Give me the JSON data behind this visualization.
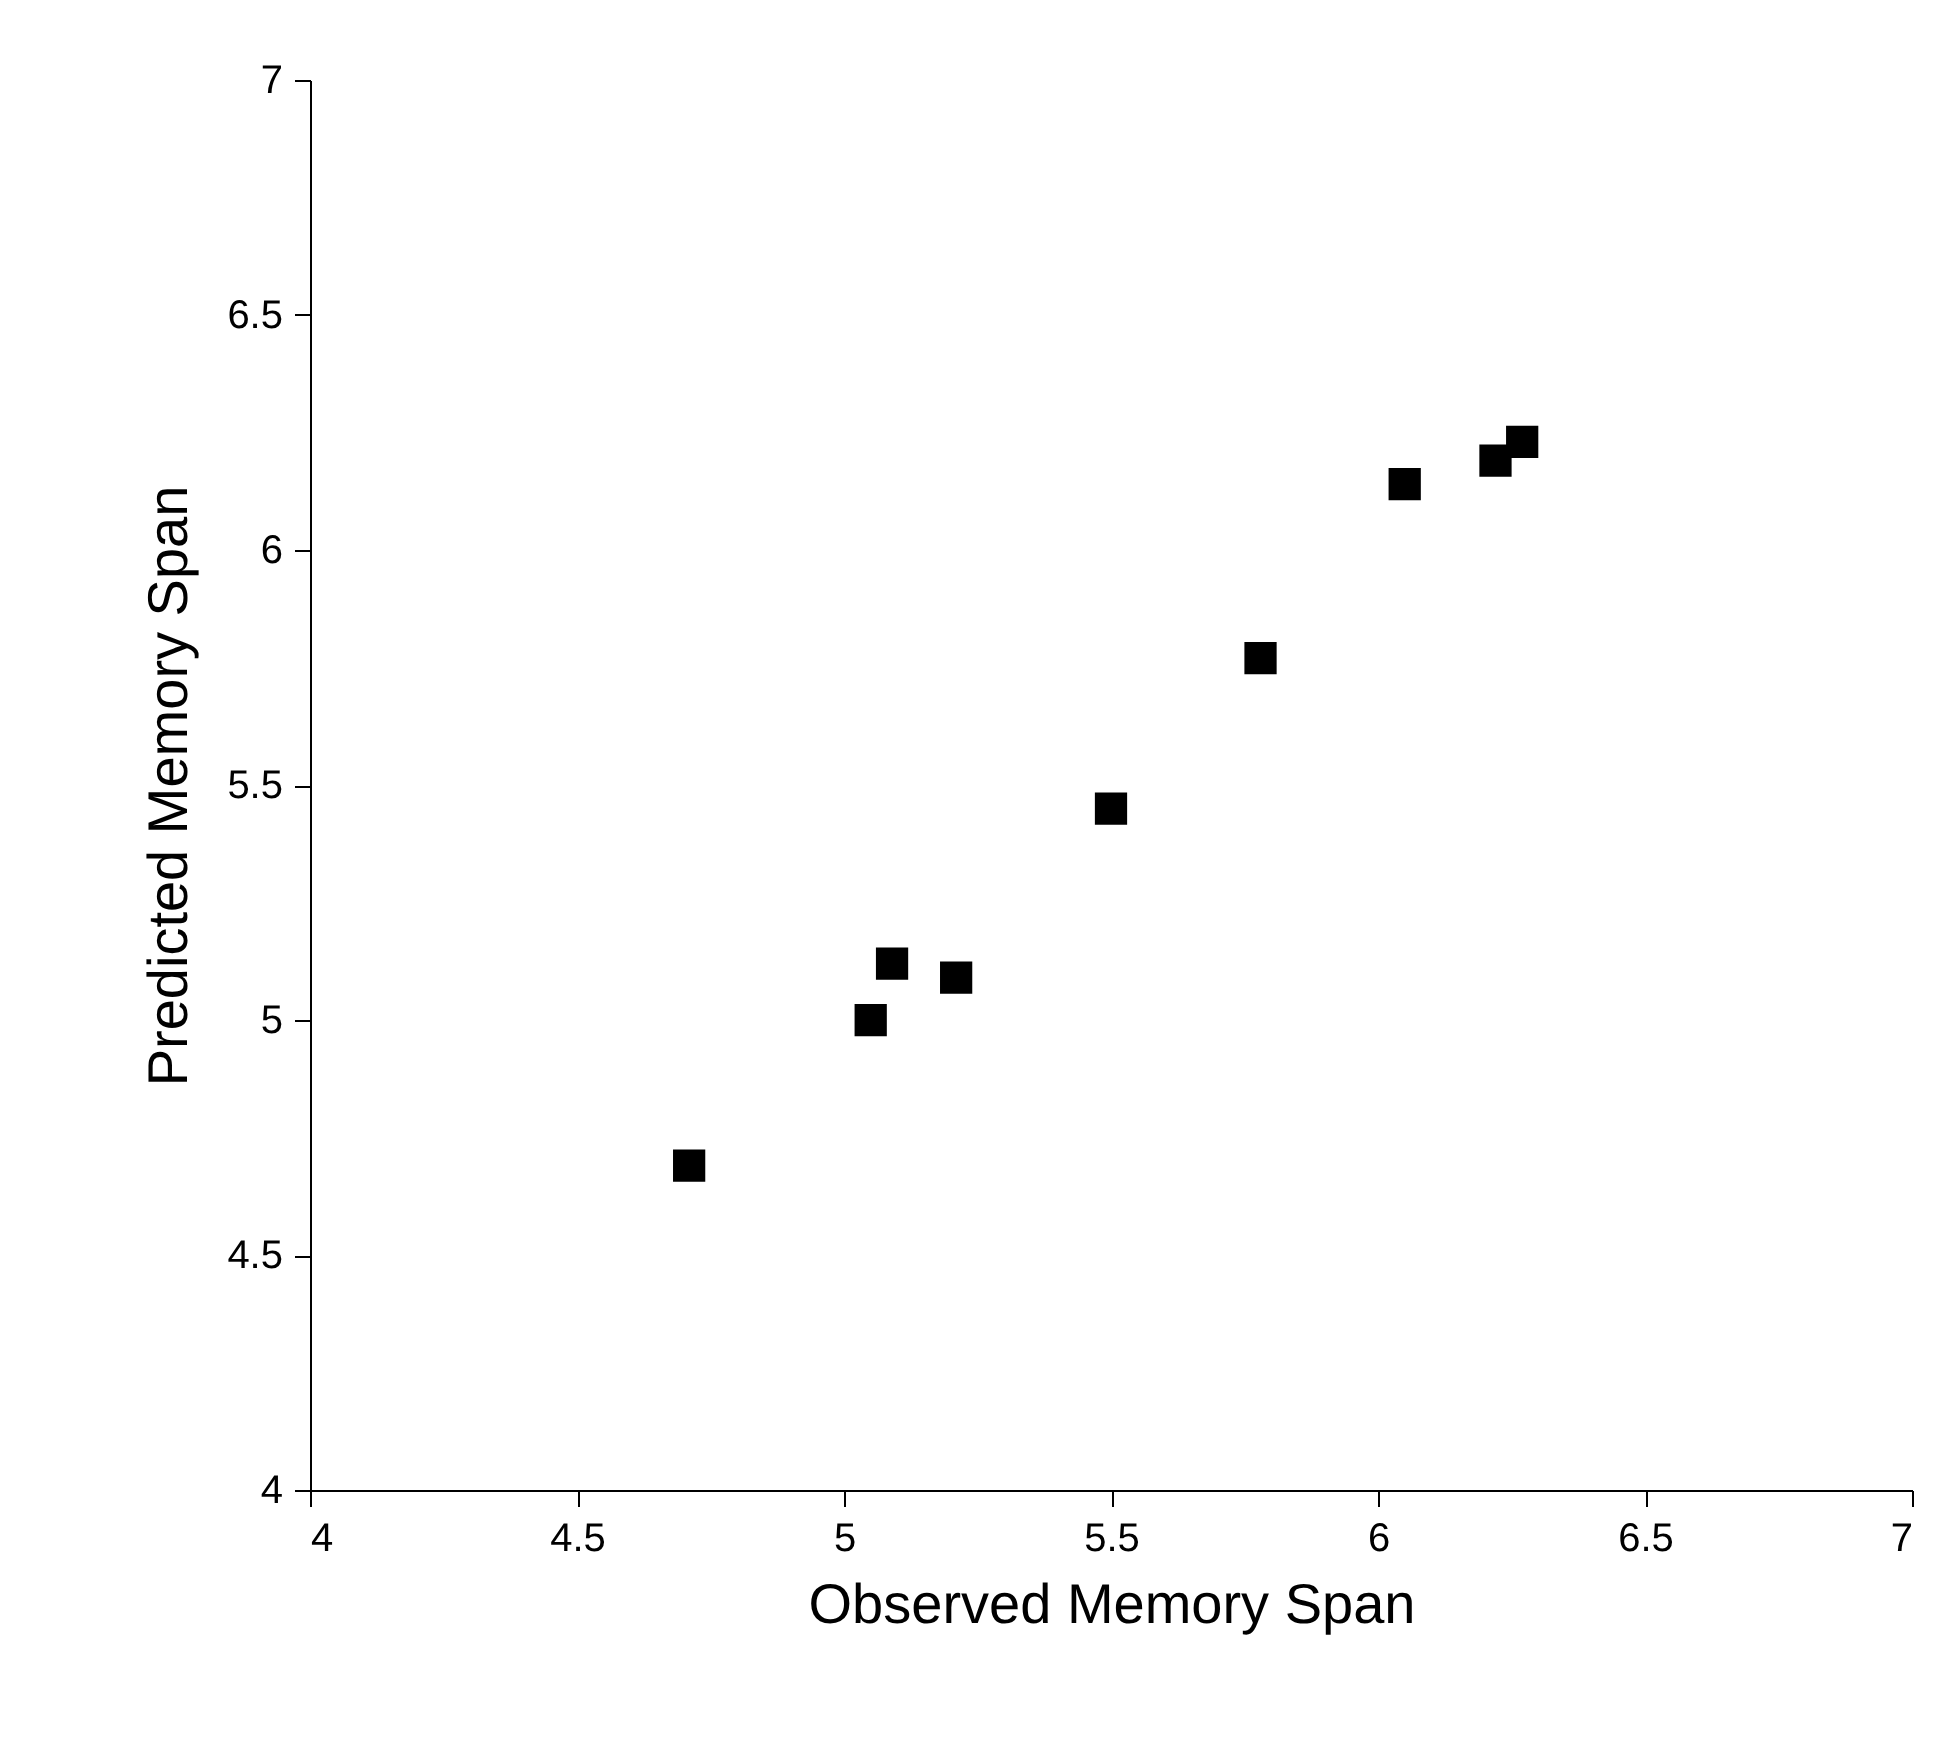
{
  "chart_data": {
    "type": "scatter",
    "xlabel": "Observed Memory Span",
    "ylabel": "Predicted Memory Span",
    "x": [
      4.71,
      5.05,
      5.09,
      5.21,
      5.5,
      5.78,
      6.05,
      6.22,
      6.27
    ],
    "series": [
      {
        "color": "#000000",
        "values": [
          4.69,
          5.0,
          5.12,
          5.09,
          5.45,
          5.77,
          6.14,
          6.19,
          6.23
        ]
      }
    ],
    "xlim": [
      4,
      7
    ],
    "ylim": [
      4,
      7
    ],
    "xticks": [
      4,
      4.5,
      5,
      5.5,
      6,
      6.5,
      7
    ],
    "yticks": [
      4,
      4.5,
      5,
      5.5,
      6,
      6.5,
      7
    ],
    "marker": "square",
    "grid": false,
    "legend": false
  }
}
